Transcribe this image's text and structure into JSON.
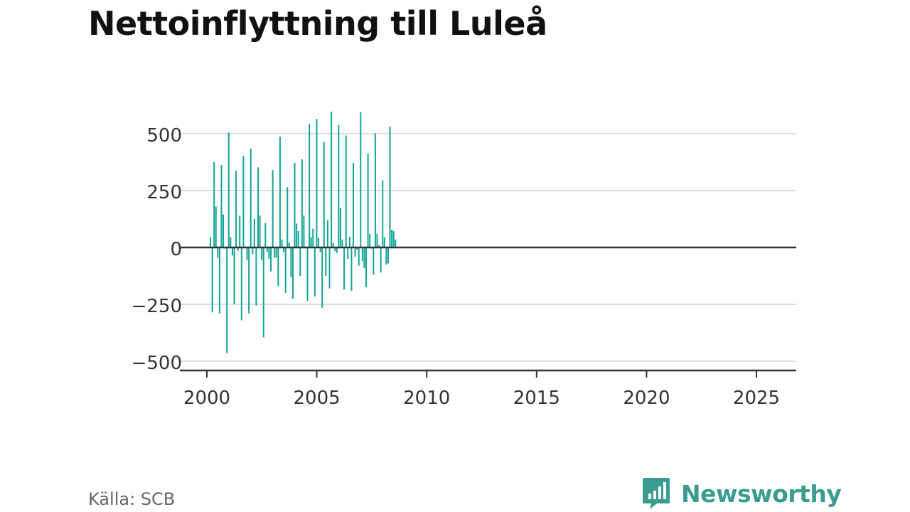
{
  "title": "Nettoinflyttning till Luleå",
  "source": "Källa: SCB",
  "brand": {
    "name": "Newsworthy",
    "icon": "newsworthy-logo-icon"
  },
  "colors": {
    "bar": "#12a596",
    "grid": "#dddddd",
    "axis": "#333333",
    "brand": "#3a9c91"
  },
  "chart_data": {
    "type": "bar",
    "title": "Nettoinflyttning till Luleå",
    "xlabel": "",
    "ylabel": "",
    "x_ticks": [
      "2000",
      "2005",
      "2010",
      "2015",
      "2020",
      "2025"
    ],
    "y_ticks": [
      "500",
      "250",
      "0",
      "−250",
      "−500"
    ],
    "y_tick_values": [
      500,
      250,
      0,
      -250,
      -500
    ],
    "ylim": [
      -540,
      600
    ],
    "xlim": [
      1999.2,
      2026.8
    ],
    "grid": true,
    "frequency": "monthly, starting 2000 (Jan–Dec)",
    "series": [
      {
        "values": [
          45,
          -285,
          375,
          180,
          -45,
          -290,
          362,
          145,
          -5,
          -465,
          505,
          45,
          -35,
          -250,
          337,
          -15,
          140,
          -320,
          402,
          0,
          -55,
          -290,
          434,
          -30,
          127,
          -255,
          352,
          140,
          -55,
          -395,
          107,
          -20,
          -50,
          -105,
          340,
          -45,
          -45,
          -170,
          487,
          35,
          -20,
          -200,
          265,
          22,
          -130,
          -225,
          372,
          105,
          72,
          -125,
          387,
          140,
          5,
          -235,
          542,
          45,
          83,
          -215,
          565,
          42,
          -20,
          -265,
          463,
          -125,
          120,
          -180,
          597,
          20,
          -15,
          -25,
          538,
          173,
          35,
          -185,
          492,
          -50,
          47,
          -190,
          372,
          -40,
          -10,
          -80,
          595,
          -60,
          -90,
          -175,
          412,
          60,
          -5,
          -120,
          502,
          60,
          10,
          -110,
          295,
          45,
          -75,
          -70,
          532,
          78,
          72,
          35
        ]
      }
    ]
  }
}
